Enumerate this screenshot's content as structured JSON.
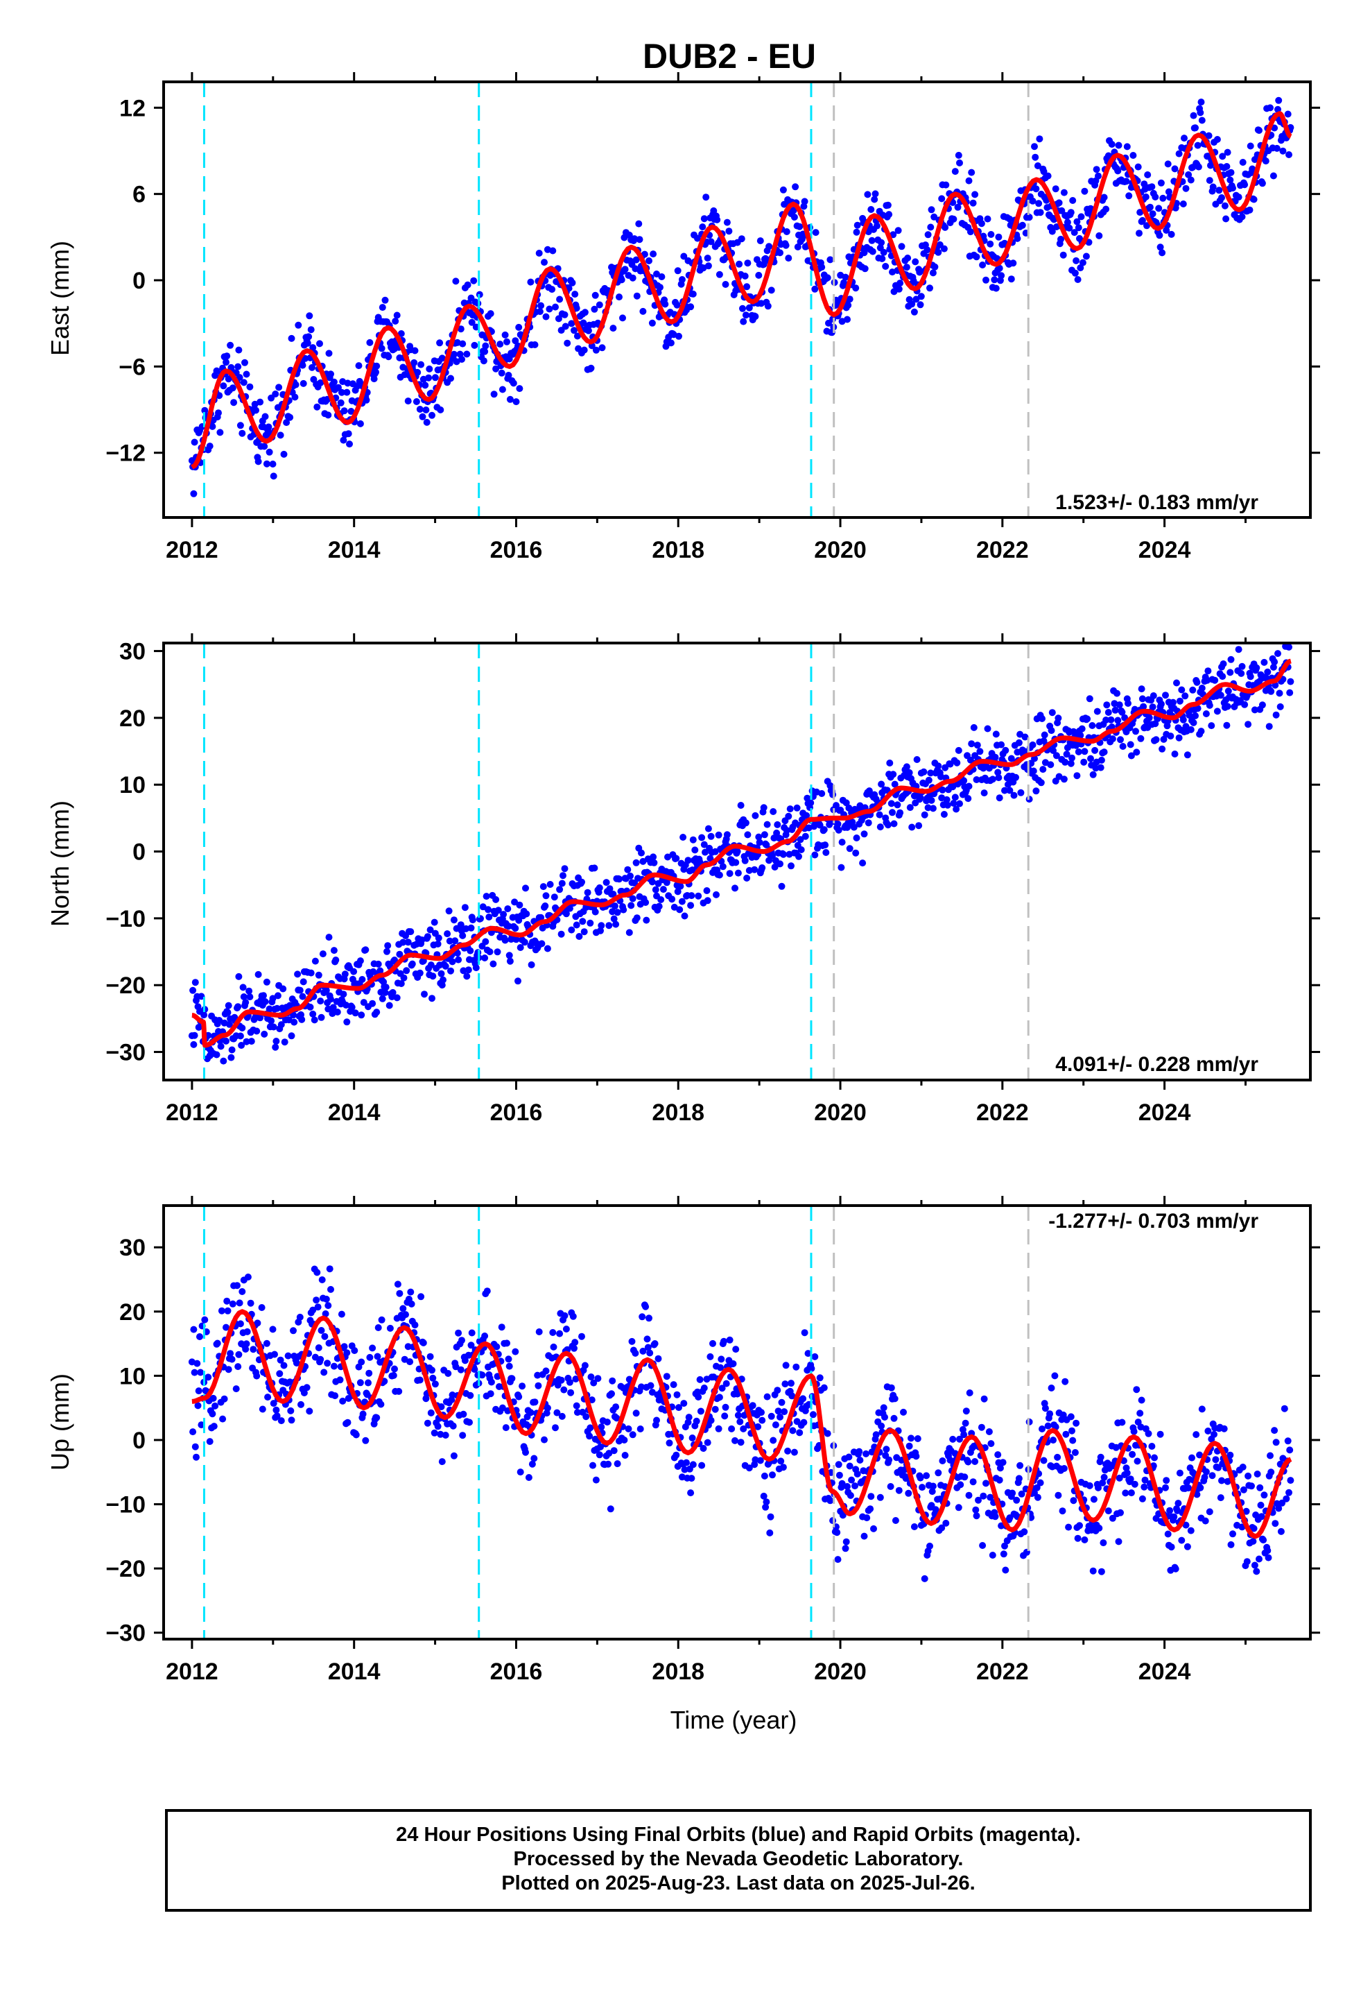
{
  "title": "DUB2 - EU",
  "footer": {
    "line1": "24 Hour Positions Using Final Orbits (blue) and Rapid Orbits (magenta).",
    "line2": "Processed by the Nevada Geodetic Laboratory.",
    "line3": "Plotted on 2025-Aug-23. Last data on 2025-Jul-26."
  },
  "colors": {
    "points": "#0000ff",
    "fit": "#ff0000",
    "equipment_change": "#00e5ff",
    "event": "#c0c0c0"
  },
  "chart_data": [
    {
      "type": "scatter",
      "id": "east",
      "title": "DUB2 - EU",
      "ylabel": "East (mm)",
      "xlabel": "",
      "xlim": [
        2011.65,
        2025.8
      ],
      "ylim": [
        -16.5,
        13.8
      ],
      "xticks": [
        2012,
        2014,
        2016,
        2018,
        2020,
        2022,
        2024
      ],
      "yticks": [
        -12,
        -6,
        0,
        6,
        12
      ],
      "rate_label": "1.523+/- 0.183 mm/yr",
      "rate_position": "bottom-right",
      "vlines_cyan": [
        2012.15,
        2015.54,
        2019.64
      ],
      "vlines_gray": [
        2019.92,
        2022.32
      ],
      "series": [
        {
          "name": "daily positions",
          "x_start": 2012.0,
          "x_end": 2025.56,
          "trend": [
            [
              2012.0,
              -12.5
            ],
            [
              2025.56,
              11.0
            ]
          ],
          "outlier_notes": ""
        },
        {
          "name": "seasonal fit",
          "x": [
            2012.0,
            2012.42,
            2012.92,
            2013.42,
            2013.92,
            2014.42,
            2014.92,
            2015.42,
            2015.92,
            2016.42,
            2016.92,
            2017.42,
            2017.92,
            2018.42,
            2018.92,
            2019.42,
            2019.92,
            2020.42,
            2020.92,
            2021.42,
            2021.92,
            2022.42,
            2022.92,
            2023.42,
            2023.92,
            2024.42,
            2024.92,
            2025.42,
            2025.56
          ],
          "y": [
            -13.0,
            -6.3,
            -11.2,
            -4.9,
            -9.9,
            -3.3,
            -8.3,
            -1.8,
            -6.0,
            0.8,
            -4.3,
            2.3,
            -2.9,
            3.7,
            -1.5,
            5.3,
            -2.4,
            4.5,
            -0.6,
            6.0,
            1.1,
            7.0,
            2.2,
            8.7,
            3.6,
            10.1,
            4.9,
            11.6,
            10.0
          ]
        }
      ]
    },
    {
      "type": "scatter",
      "id": "north",
      "ylabel": "North (mm)",
      "xlabel": "",
      "xlim": [
        2011.65,
        2025.8
      ],
      "ylim": [
        -34.2,
        31.2
      ],
      "xticks": [
        2012,
        2014,
        2016,
        2018,
        2020,
        2022,
        2024
      ],
      "yticks": [
        -30,
        -20,
        -10,
        0,
        10,
        20,
        30
      ],
      "rate_label": "4.091+/- 0.228 mm/yr",
      "rate_position": "bottom-right",
      "vlines_cyan": [
        2012.15,
        2015.54,
        2019.64
      ],
      "vlines_gray": [
        2019.92,
        2022.32
      ],
      "series": [
        {
          "name": "daily positions",
          "x_start": 2012.0,
          "x_end": 2025.56
        },
        {
          "name": "seasonal fit",
          "x": [
            2012.0,
            2012.14,
            2012.16,
            2012.4,
            2012.7,
            2013.1,
            2013.3,
            2013.6,
            2014.05,
            2014.35,
            2014.7,
            2015.05,
            2015.35,
            2015.7,
            2016.05,
            2016.35,
            2016.7,
            2017.05,
            2017.35,
            2017.7,
            2018.1,
            2018.35,
            2018.7,
            2019.05,
            2019.35,
            2019.64,
            2019.9,
            2020.05,
            2020.35,
            2020.75,
            2021.05,
            2021.35,
            2021.75,
            2022.1,
            2022.35,
            2022.75,
            2023.1,
            2023.35,
            2023.75,
            2024.1,
            2024.35,
            2024.75,
            2025.05,
            2025.35,
            2025.56
          ],
          "y": [
            -24.5,
            -25.5,
            -29.0,
            -27.5,
            -24.0,
            -24.5,
            -23.5,
            -20.0,
            -20.5,
            -18.5,
            -15.5,
            -16.0,
            -14.0,
            -11.5,
            -12.5,
            -10.5,
            -7.5,
            -8.0,
            -6.5,
            -3.5,
            -4.5,
            -2.0,
            0.8,
            0.0,
            1.5,
            4.8,
            5.0,
            5.0,
            6.0,
            9.5,
            9.0,
            10.5,
            13.5,
            13.0,
            14.5,
            17.0,
            16.5,
            18.0,
            21.0,
            20.0,
            22.0,
            25.0,
            24.0,
            25.5,
            28.5
          ]
        }
      ]
    },
    {
      "type": "scatter",
      "id": "up",
      "ylabel": "Up (mm)",
      "xlabel": "Time (year)",
      "xlim": [
        2011.65,
        2025.8
      ],
      "ylim": [
        -31.0,
        36.5
      ],
      "xticks": [
        2012,
        2014,
        2016,
        2018,
        2020,
        2022,
        2024
      ],
      "yticks": [
        -30,
        -20,
        -10,
        0,
        10,
        20,
        30
      ],
      "rate_label": "-1.277+/- 0.703 mm/yr",
      "rate_position": "top-right",
      "vlines_cyan": [
        2012.15,
        2015.54,
        2019.64
      ],
      "vlines_gray": [
        2019.92,
        2022.32
      ],
      "series": [
        {
          "name": "daily positions",
          "x_start": 2012.0,
          "x_end": 2025.56
        },
        {
          "name": "seasonal fit",
          "x": [
            2012.0,
            2012.15,
            2012.62,
            2013.12,
            2013.62,
            2014.12,
            2014.62,
            2015.12,
            2015.62,
            2016.12,
            2016.62,
            2017.12,
            2017.62,
            2018.12,
            2018.62,
            2019.12,
            2019.64,
            2019.9,
            2020.12,
            2020.62,
            2021.12,
            2021.62,
            2022.12,
            2022.62,
            2023.12,
            2023.62,
            2024.12,
            2024.62,
            2025.12,
            2025.56
          ],
          "y": [
            6.0,
            6.5,
            20.0,
            6.0,
            19.0,
            5.0,
            17.5,
            3.5,
            15.0,
            1.0,
            13.5,
            -0.5,
            12.5,
            -2.0,
            11.0,
            -3.0,
            10.0,
            -8.0,
            -11.5,
            1.5,
            -13.0,
            0.5,
            -14.0,
            1.5,
            -12.5,
            0.5,
            -14.0,
            -0.5,
            -15.0,
            -3.0
          ]
        }
      ]
    }
  ]
}
